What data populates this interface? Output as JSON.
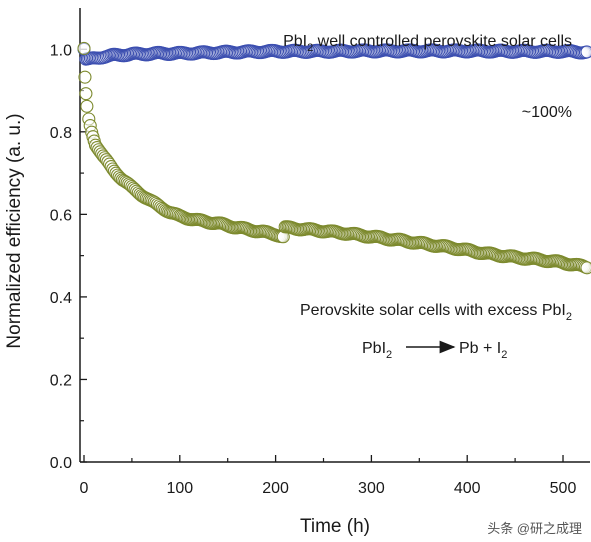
{
  "chart_data": {
    "type": "scatter",
    "xlabel": "Time (h)",
    "ylabel": "Normalized efficiency (a. u.)",
    "xlim": [
      0,
      530
    ],
    "ylim": [
      0,
      1.1
    ],
    "x_ticks": [
      "0",
      "100",
      "200",
      "300",
      "400",
      "500"
    ],
    "y_ticks": [
      "0.0",
      "0.2",
      "0.4",
      "0.6",
      "0.8",
      "1.0"
    ],
    "grid": false,
    "series": [
      {
        "color": "#3c4fb0",
        "marker": "open-circle",
        "points": [
          [
            0,
            1.0
          ],
          [
            2,
            0.975
          ],
          [
            5,
            0.975
          ],
          [
            10,
            0.978
          ],
          [
            20,
            0.982
          ],
          [
            30,
            0.985
          ],
          [
            50,
            0.988
          ],
          [
            80,
            0.99
          ],
          [
            100,
            0.99
          ],
          [
            150,
            0.993
          ],
          [
            200,
            0.995
          ],
          [
            250,
            0.995
          ],
          [
            300,
            0.996
          ],
          [
            350,
            0.996
          ],
          [
            400,
            0.996
          ],
          [
            450,
            0.995
          ],
          [
            500,
            0.995
          ],
          [
            525,
            0.993
          ]
        ]
      },
      {
        "color": "#7d8a2e",
        "marker": "open-circle",
        "points": [
          [
            0,
            1.0
          ],
          [
            1,
            0.93
          ],
          [
            2,
            0.89
          ],
          [
            3,
            0.86
          ],
          [
            5,
            0.83
          ],
          [
            8,
            0.8
          ],
          [
            12,
            0.77
          ],
          [
            20,
            0.74
          ],
          [
            30,
            0.71
          ],
          [
            40,
            0.685
          ],
          [
            50,
            0.665
          ],
          [
            60,
            0.648
          ],
          [
            70,
            0.632
          ],
          [
            80,
            0.618
          ],
          [
            90,
            0.605
          ],
          [
            100,
            0.595
          ],
          [
            120,
            0.585
          ],
          [
            140,
            0.578
          ],
          [
            160,
            0.568
          ],
          [
            180,
            0.56
          ],
          [
            200,
            0.552
          ],
          [
            208,
            0.545
          ],
          [
            210,
            0.568
          ],
          [
            240,
            0.562
          ],
          [
            270,
            0.555
          ],
          [
            300,
            0.546
          ],
          [
            330,
            0.537
          ],
          [
            360,
            0.527
          ],
          [
            390,
            0.517
          ],
          [
            420,
            0.505
          ],
          [
            450,
            0.496
          ],
          [
            480,
            0.489
          ],
          [
            500,
            0.483
          ],
          [
            525,
            0.472
          ]
        ]
      }
    ],
    "annotations": {
      "top_prefix": "PbI",
      "top_sub": "2",
      "top_suffix": " well controlled perovskite solar cells",
      "percent": "~100%",
      "bottom_prefix": "Perovskite solar cells with excess PbI",
      "bottom_sub": "2",
      "reaction_left": "PbI",
      "reaction_left_sub": "2",
      "reaction_right": "Pb + I",
      "reaction_right_sub": "2"
    }
  },
  "watermark": "头条 @研之成理"
}
